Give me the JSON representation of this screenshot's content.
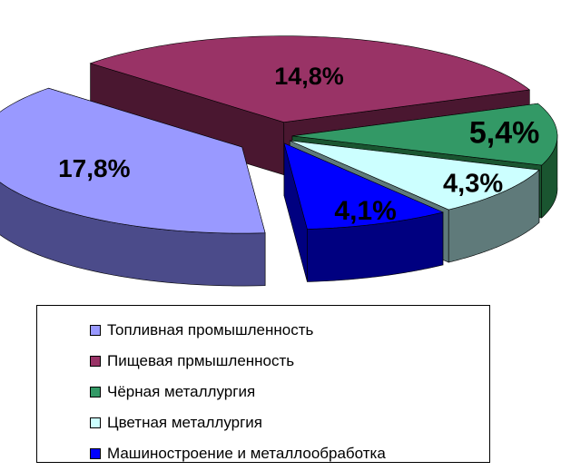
{
  "chart_data": {
    "type": "pie",
    "categories": [
      "Топливная промышленность",
      "Пищевая прмышленность",
      "Чёрная металлургия",
      "Цветная металлургия",
      "Машиностроение и металлообработка"
    ],
    "values": [
      17.8,
      14.8,
      5.4,
      4.3,
      4.1
    ],
    "value_labels": [
      "17,8%",
      "14,8%",
      "5,4%",
      "4,3%",
      "4,1%"
    ],
    "colors": [
      "#9999FF",
      "#993366",
      "#339966",
      "#CCFFFF",
      "#0000FF"
    ],
    "side_colors": [
      "#4B4B8A",
      "#4A1730",
      "#1A5530",
      "#5F7A7A",
      "#000080"
    ],
    "exploded": true,
    "three_d": true,
    "legend_position": "bottom"
  }
}
